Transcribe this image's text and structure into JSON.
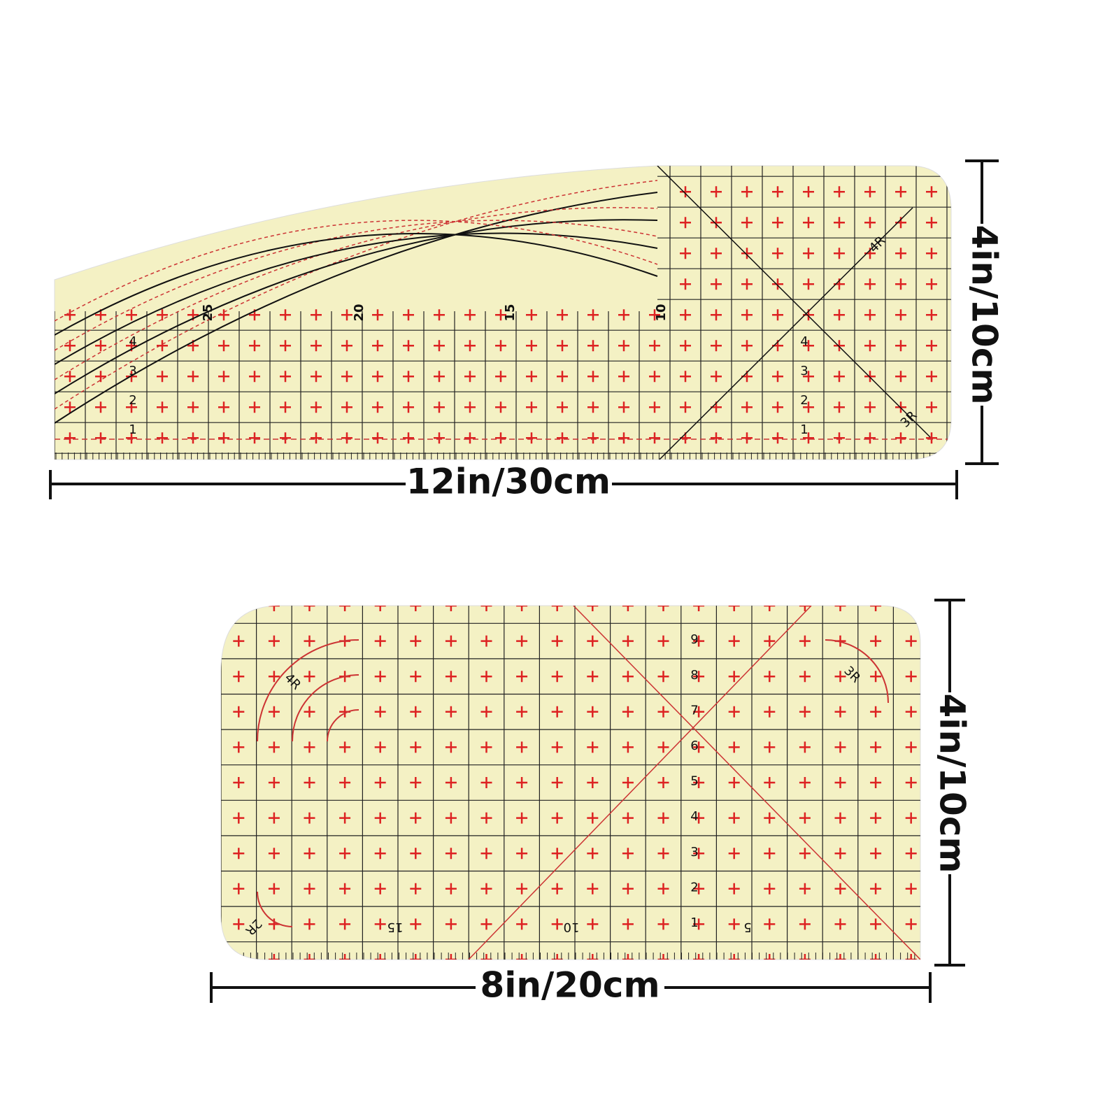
{
  "rulers": [
    {
      "width_label": "12in/30cm",
      "height_label": "4in/10cm",
      "scale_labels": [
        "25",
        "20",
        "15",
        "10"
      ],
      "row_labels": [
        "1",
        "2",
        "3",
        "4"
      ],
      "radius_labels": [
        "4R",
        "3R"
      ]
    },
    {
      "width_label": "8in/20cm",
      "height_label": "4in/10cm",
      "scale_labels": [
        "15",
        "10",
        "5"
      ],
      "row_labels": [
        "1",
        "2",
        "3",
        "4",
        "5",
        "6",
        "7",
        "8",
        "9"
      ],
      "radius_labels": [
        "4R",
        "3R",
        "2R"
      ]
    }
  ]
}
